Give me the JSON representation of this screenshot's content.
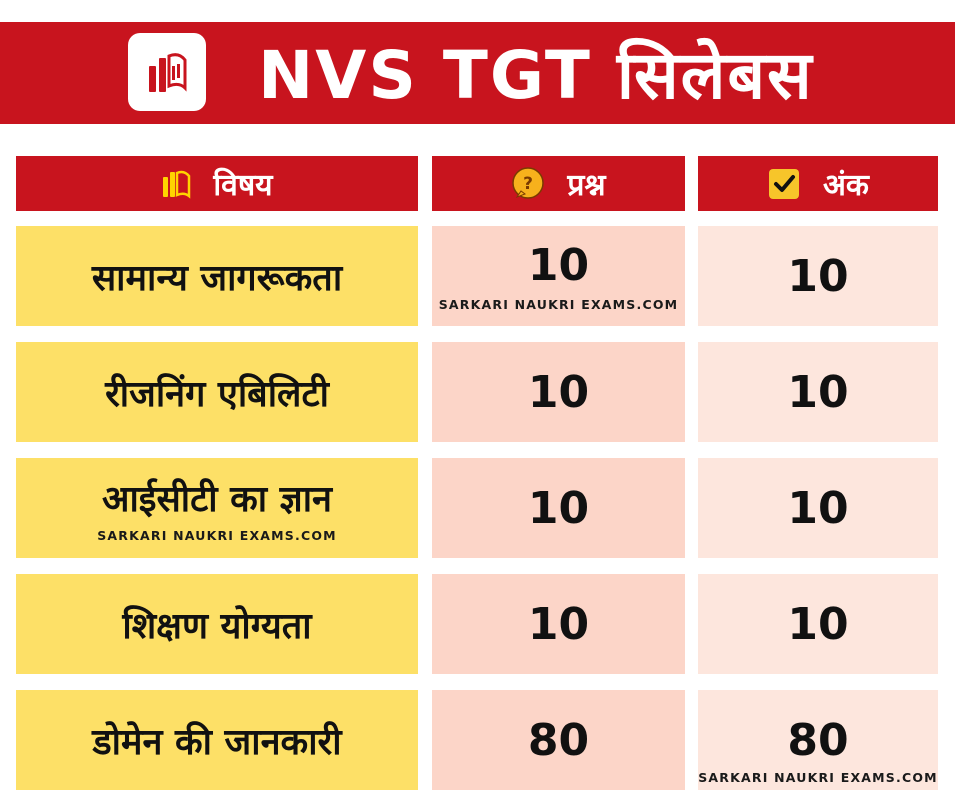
{
  "header": {
    "title": "NVS TGT  सिलेबस",
    "logo_icon": "books-icon",
    "color": "#c8141e"
  },
  "table": {
    "columns": [
      {
        "label": "विषय",
        "icon": "books-icon"
      },
      {
        "label": "प्रश्न",
        "icon": "question-bubble-icon"
      },
      {
        "label": "अंक",
        "icon": "checkbox-check-icon"
      }
    ],
    "rows": [
      {
        "subject": "सामान्य जागरूकता",
        "questions": "10",
        "marks": "10"
      },
      {
        "subject": "रीजनिंग एबिलिटी",
        "questions": "10",
        "marks": "10"
      },
      {
        "subject": "आईसीटी का ज्ञान",
        "questions": "10",
        "marks": "10"
      },
      {
        "subject": "शिक्षण योग्यता",
        "questions": "10",
        "marks": "10"
      },
      {
        "subject": "डोमेन की जानकारी",
        "questions": "80",
        "marks": "80"
      }
    ]
  },
  "watermark": "SARKARI NAUKRI EXAMS.COM",
  "colors": {
    "subject_bg": "#fde067",
    "questions_bg": "#fcd5c8",
    "marks_bg": "#fde6dd"
  }
}
